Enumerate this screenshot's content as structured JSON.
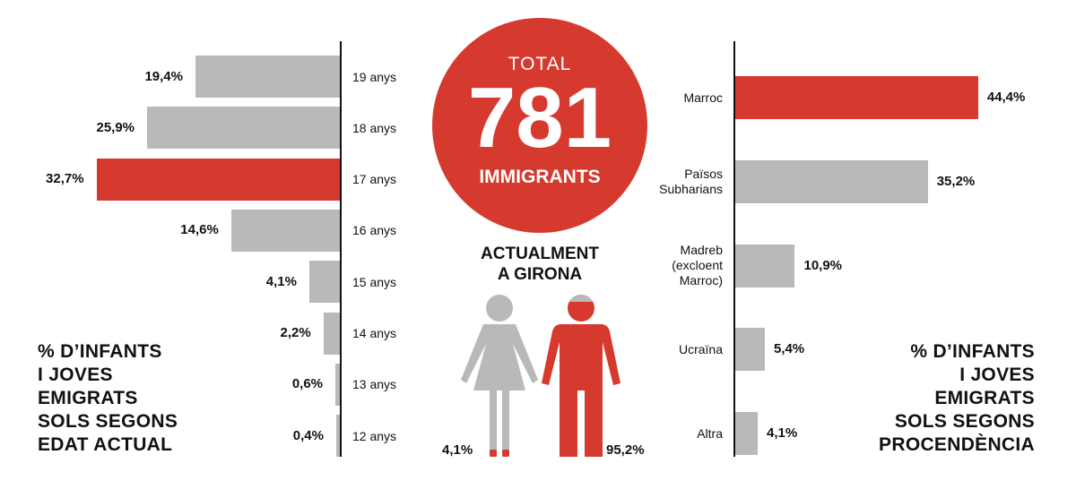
{
  "colors": {
    "highlight": "#d63a2f",
    "bar": "#b9b9b9",
    "text": "#111111"
  },
  "center": {
    "total_label": "TOTAL",
    "total_value": "781",
    "total_unit": "IMMIGRANTS",
    "location": "ACTUALMENT\nA GIRONA",
    "female_pct": "4,1%",
    "male_pct": "95,2%",
    "icons": [
      "female-figure-icon",
      "male-figure-icon"
    ]
  },
  "left_heading": "% D’INFANTS\nI JOVES\nEMIGRATS\nSOLS SEGONS\nEDAT ACTUAL",
  "right_heading": "% D’INFANTS\nI JOVES\nEMIGRATS\nSOLS SEGONS\nPROCENDÈNCIA",
  "chart_data": [
    {
      "type": "bar",
      "orientation": "horizontal",
      "title": "% D’INFANTS I JOVES EMIGRATS SOLS SEGONS EDAT ACTUAL",
      "categories": [
        "19 anys",
        "18 anys",
        "17 anys",
        "16 anys",
        "15 anys",
        "14 anys",
        "13 anys",
        "12 anys"
      ],
      "values": [
        19.4,
        25.9,
        32.7,
        14.6,
        4.1,
        2.2,
        0.6,
        0.4
      ],
      "value_labels": [
        "19,4%",
        "25,9%",
        "32,7%",
        "14,6%",
        "4,1%",
        "2,2%",
        "0,6%",
        "0,4%"
      ],
      "highlight": "17 anys",
      "direction": "right-to-left"
    },
    {
      "type": "bar",
      "orientation": "horizontal",
      "title": "% D’INFANTS I JOVES EMIGRATS SOLS SEGONS PROCENDÈNCIA",
      "categories": [
        "Marroc",
        "Països\nSubharians",
        "Madreb\n(excloent\nMarroc)",
        "Ucraïna",
        "Altra"
      ],
      "values": [
        44.4,
        35.2,
        10.9,
        5.4,
        4.1
      ],
      "value_labels": [
        "44,4%",
        "35,2%",
        "10,9%",
        "5,4%",
        "4,1%"
      ],
      "highlight": "Marroc",
      "direction": "left-to-right"
    }
  ]
}
